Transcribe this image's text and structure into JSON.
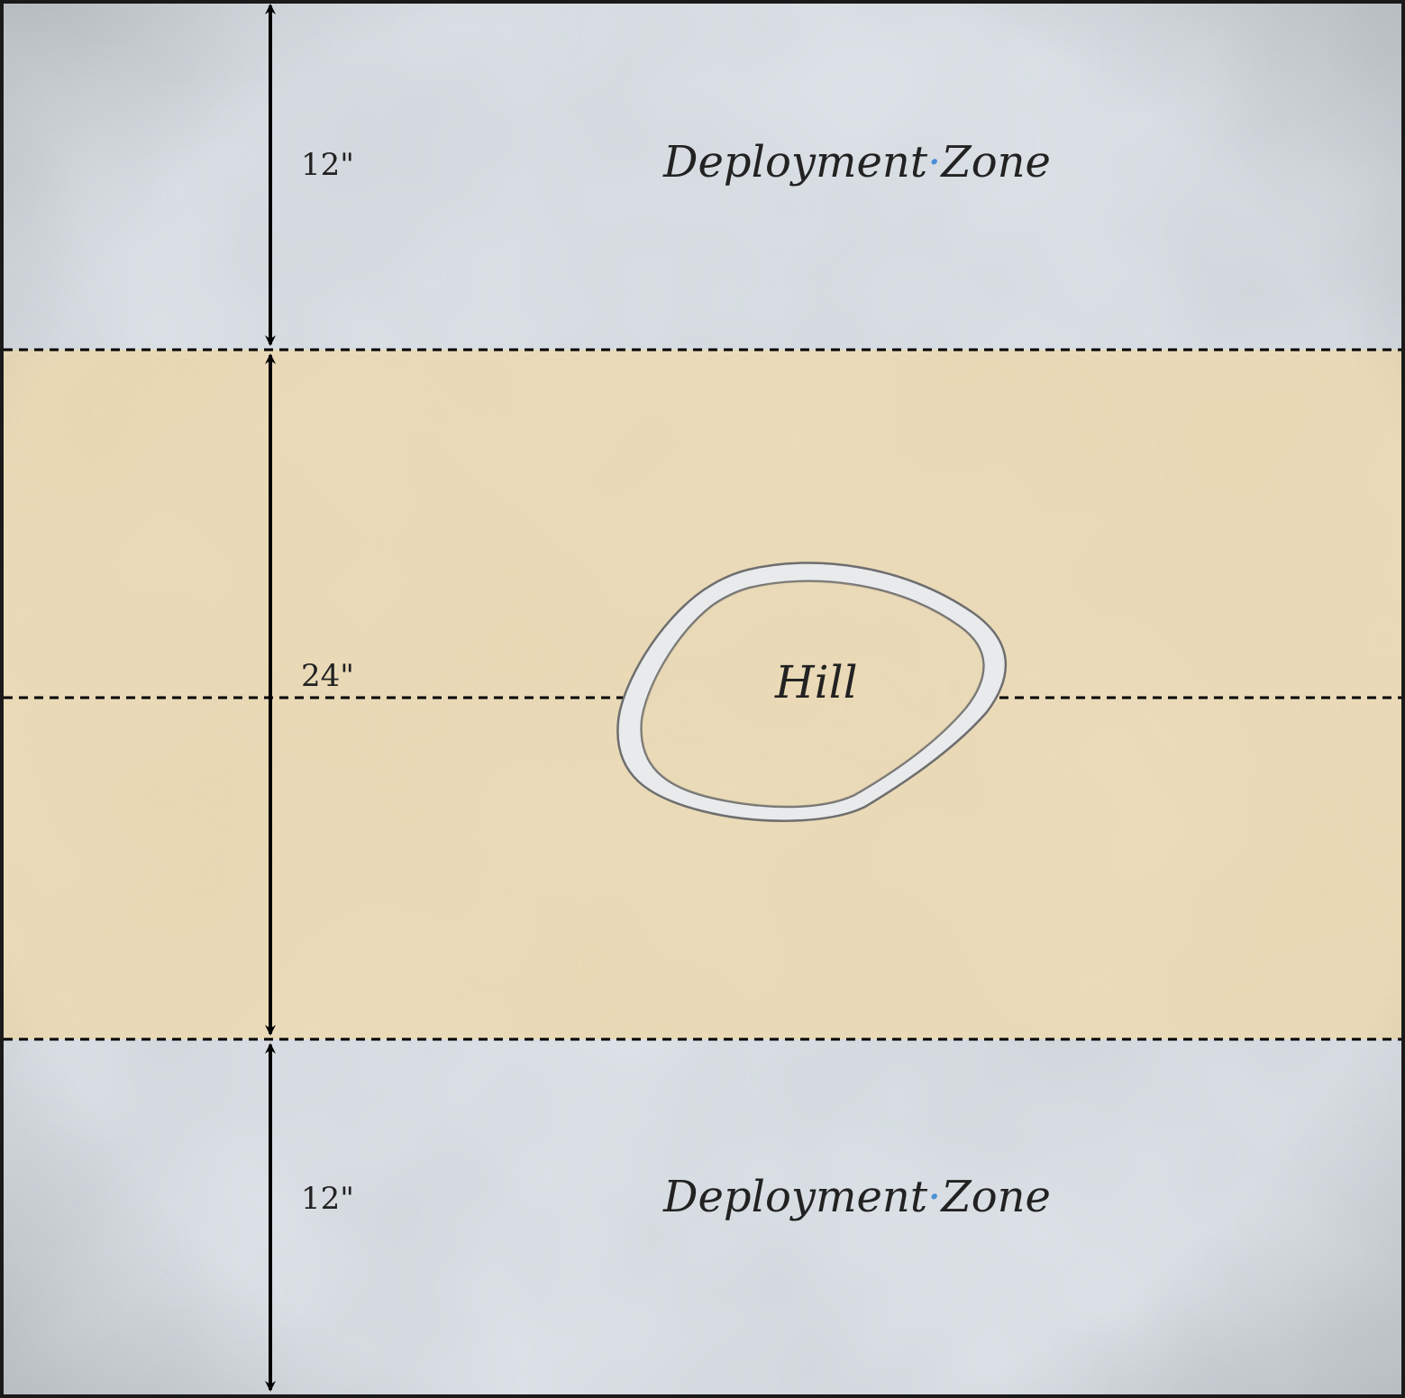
{
  "map": {
    "zones": {
      "top": {
        "title_left": "Deployment",
        "title_right": "Zone",
        "depth": "12\""
      },
      "middle": {
        "depth": "24\""
      },
      "bottom": {
        "title_left": "Deployment",
        "title_right": "Zone",
        "depth": "12\""
      }
    },
    "terrain": {
      "hill_label": "Hill"
    },
    "colors": {
      "deployment_zone": "#dde3e8",
      "no_mans_land": "#e8d6b2",
      "hill_rim": "#e6e8ea",
      "hill_outline": "#7a7a7a",
      "line": "#000000",
      "separator_dot": "#4a8fd8"
    }
  }
}
